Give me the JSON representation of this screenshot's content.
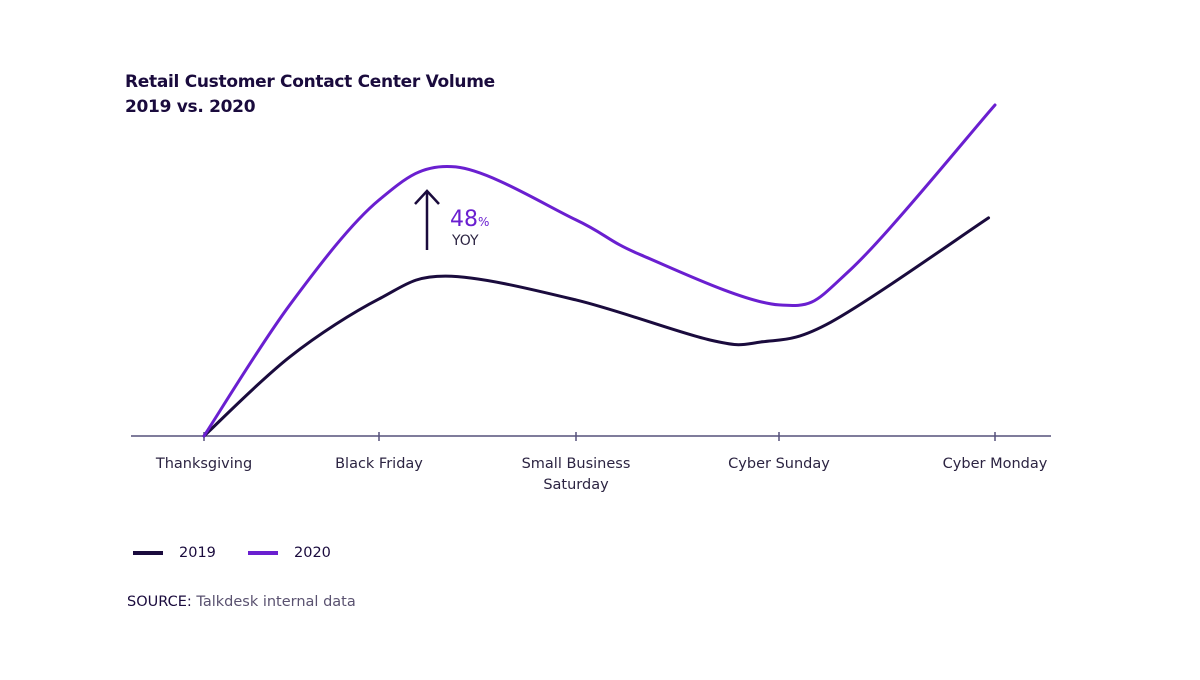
{
  "chart_data": {
    "type": "line",
    "title": "Retail Customer Contact Center Volume",
    "subtitle": "2019 vs. 2020",
    "categories": [
      "Thanksgiving",
      "Black Friday",
      "Small Business Saturday",
      "Cyber Sunday",
      "Cyber Monday"
    ],
    "category_lines": [
      [
        "Thanksgiving"
      ],
      [
        "Black Friday"
      ],
      [
        "Small Business",
        "Saturday"
      ],
      [
        "Cyber Sunday"
      ],
      [
        "Cyber Monday"
      ]
    ],
    "xlabel": "",
    "ylabel": "",
    "y_axis_shown": false,
    "ylim": [
      0,
      100
    ],
    "grid": false,
    "legend_position": "bottom-left",
    "series": [
      {
        "name": "2019",
        "color": "#1a0b3d",
        "points": [
          [
            0,
            0
          ],
          [
            0.49,
            23.9
          ],
          [
            1,
            41.4
          ],
          [
            1.34,
            48.3
          ],
          [
            2,
            41.1
          ],
          [
            2.66,
            29
          ],
          [
            2.91,
            28.4
          ],
          [
            3.24,
            34.4
          ],
          [
            3.97,
            65.9
          ]
        ]
      },
      {
        "name": "2020",
        "color": "#6a1fd0",
        "points": [
          [
            0,
            0
          ],
          [
            0.49,
            39.6
          ],
          [
            1,
            71.3
          ],
          [
            1.39,
            81.3
          ],
          [
            2,
            65.3
          ],
          [
            2.32,
            54.7
          ],
          [
            3,
            39.6
          ],
          [
            3.33,
            50.2
          ],
          [
            4,
            100
          ]
        ]
      }
    ],
    "annotation": {
      "value": "48",
      "unit": "%",
      "label": "YOY",
      "arrow": "up"
    },
    "source_label": "SOURCE:",
    "source_text": "Talkdesk internal data"
  }
}
